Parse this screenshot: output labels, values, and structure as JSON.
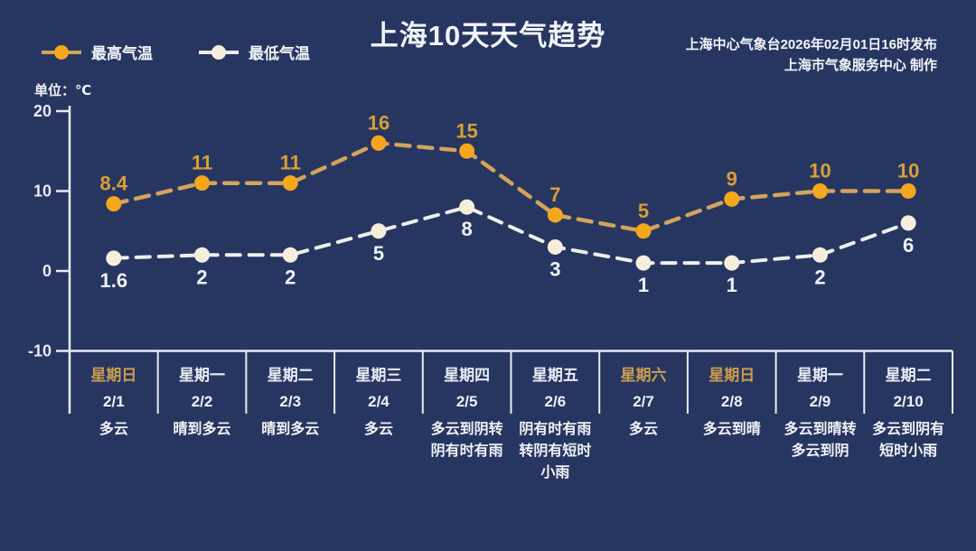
{
  "header": {
    "title": "上海10天天气趋势",
    "publisher_line1": "上海中心气象台2026年02月01日16时发布",
    "publisher_line2": "上海市气象服务中心  制作",
    "unit_label": "单位：℃"
  },
  "legend": {
    "high_label": "最高气温",
    "low_label": "最低气温"
  },
  "colors": {
    "background": "#273661",
    "text_primary": "#f2f4f8",
    "axis": "#e8ebf2",
    "high_line": "#d4a35c",
    "high_marker": "#f4a71d",
    "high_value_text": "#d89f35",
    "low_line": "#efefec",
    "low_marker": "#f6eedd",
    "low_value_text": "#eef2f8",
    "weekday_text": "#e8ecf4",
    "weekend_text": "#cb9d4d",
    "date_text": "#eef1f7",
    "weather_text": "#f2f3f7"
  },
  "chart_data": {
    "type": "line",
    "title": "上海10天天气趋势",
    "ylabel": "℃",
    "ylim": [
      -10,
      20
    ],
    "yticks": [
      20,
      10,
      0,
      -10
    ],
    "grid": false,
    "legend_position": "top-left",
    "x_categories": [
      "2/1",
      "2/2",
      "2/3",
      "2/4",
      "2/5",
      "2/6",
      "2/7",
      "2/8",
      "2/9",
      "2/10"
    ],
    "weekdays": [
      "星期日",
      "星期一",
      "星期二",
      "星期三",
      "星期四",
      "星期五",
      "星期六",
      "星期日",
      "星期一",
      "星期二"
    ],
    "weekend_flags": [
      true,
      false,
      false,
      false,
      false,
      false,
      true,
      true,
      false,
      false
    ],
    "weather": [
      [
        "多云"
      ],
      [
        "晴到多云"
      ],
      [
        "晴到多云"
      ],
      [
        "多云"
      ],
      [
        "多云到阴转",
        "阴有时有雨"
      ],
      [
        "阴有时有雨",
        "转阴有短时",
        "小雨"
      ],
      [
        "多云"
      ],
      [
        "多云到晴"
      ],
      [
        "多云到晴转",
        "多云到阴"
      ],
      [
        "多云到阴有",
        "短时小雨"
      ]
    ],
    "series": [
      {
        "name": "最高气温",
        "values": [
          8.4,
          11,
          11,
          16,
          15,
          7,
          5,
          9,
          10,
          10
        ],
        "labels": [
          "8.4",
          "11",
          "11",
          "16",
          "15",
          "7",
          "5",
          "9",
          "10",
          "10"
        ]
      },
      {
        "name": "最低气温",
        "values": [
          1.6,
          2,
          2,
          5,
          8,
          3,
          1,
          1,
          2,
          6
        ],
        "labels": [
          "1.6",
          "2",
          "2",
          "5",
          "8",
          "3",
          "1",
          "1",
          "2",
          "6"
        ]
      }
    ]
  }
}
